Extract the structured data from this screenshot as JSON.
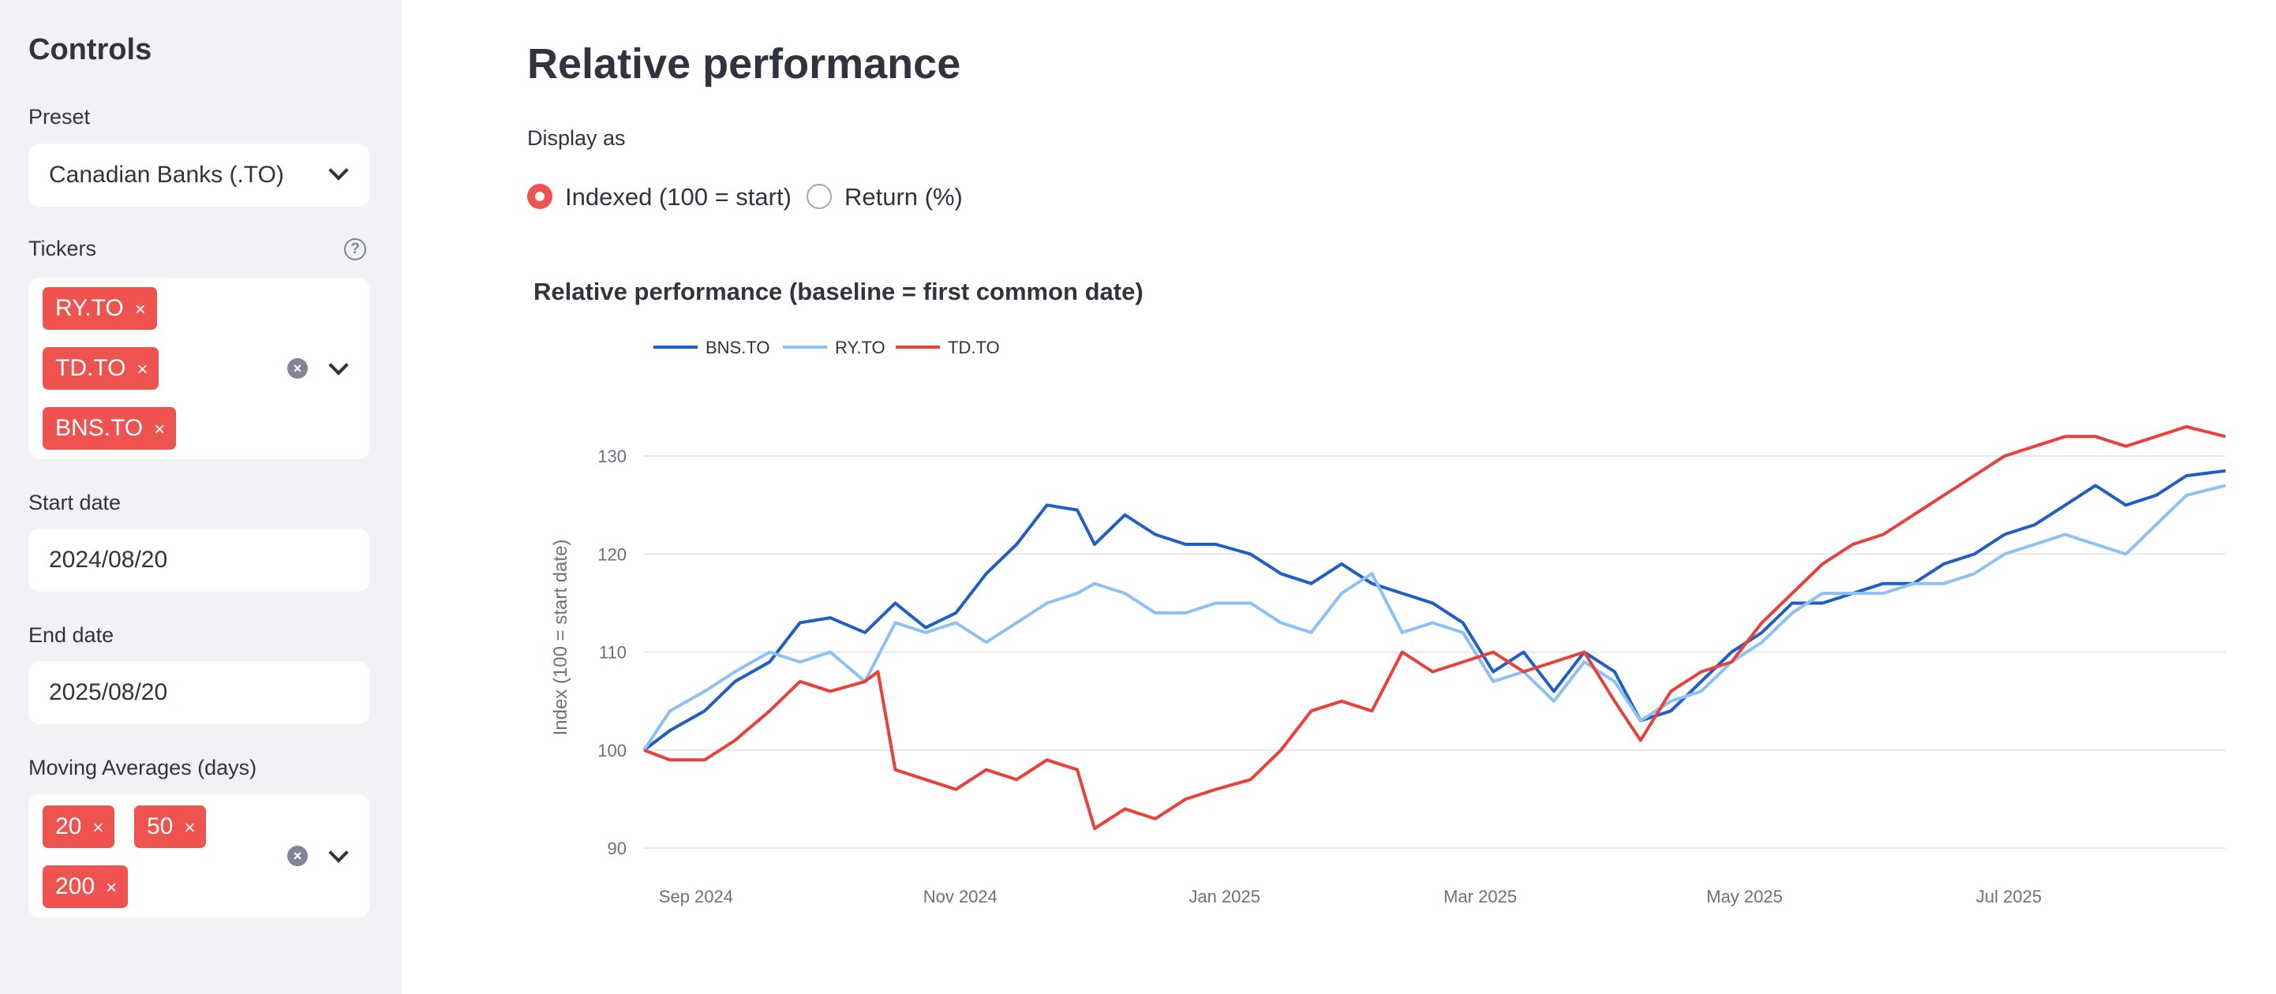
{
  "sidebar": {
    "title": "Controls",
    "preset": {
      "label": "Preset",
      "value": "Canadian Banks (.TO)"
    },
    "tickers": {
      "label": "Tickers",
      "chips": [
        "RY.TO",
        "TD.TO",
        "BNS.TO"
      ]
    },
    "start_date": {
      "label": "Start date",
      "value": "2024/08/20"
    },
    "end_date": {
      "label": "End date",
      "value": "2025/08/20"
    },
    "moving_averages": {
      "label": "Moving Averages (days)",
      "chips": [
        "20",
        "50",
        "200"
      ]
    },
    "help_glyph": "?",
    "remove_glyph": "×",
    "clear_glyph": "×"
  },
  "main": {
    "title": "Relative performance",
    "display_as": {
      "label": "Display as",
      "options": [
        "Indexed (100 = start)",
        "Return (%)"
      ],
      "selected": 0
    }
  },
  "colors": {
    "accent": "#ef5350",
    "sidebar_bg": "#f0f2f6"
  },
  "icons": [
    "help-icon",
    "close-icon",
    "clear-icon",
    "chevron-down-icon"
  ],
  "chart_data": {
    "type": "line",
    "title": "Relative performance (baseline = first common date)",
    "xlabel": "",
    "ylabel": "Index (100 = start date)",
    "ylim": [
      88,
      135
    ],
    "xlim": [
      "2024-08-20",
      "2025-08-20"
    ],
    "yticks": [
      90,
      100,
      110,
      120,
      130
    ],
    "xticks": [
      {
        "date": "2024-09-01",
        "label": "Sep 2024"
      },
      {
        "date": "2024-11-01",
        "label": "Nov 2024"
      },
      {
        "date": "2025-01-01",
        "label": "Jan 2025"
      },
      {
        "date": "2025-03-01",
        "label": "Mar 2025"
      },
      {
        "date": "2025-05-01",
        "label": "May 2025"
      },
      {
        "date": "2025-07-01",
        "label": "Jul 2025"
      }
    ],
    "grid": true,
    "legend": "top-left",
    "series": [
      {
        "name": "BNS.TO",
        "color": "#1f5ec4",
        "points": [
          [
            "2024-08-20",
            100
          ],
          [
            "2024-08-26",
            102
          ],
          [
            "2024-09-03",
            104
          ],
          [
            "2024-09-10",
            107
          ],
          [
            "2024-09-18",
            109
          ],
          [
            "2024-09-25",
            113
          ],
          [
            "2024-10-02",
            113.5
          ],
          [
            "2024-10-10",
            112
          ],
          [
            "2024-10-17",
            115
          ],
          [
            "2024-10-24",
            112.5
          ],
          [
            "2024-10-31",
            114
          ],
          [
            "2024-11-07",
            118
          ],
          [
            "2024-11-14",
            121
          ],
          [
            "2024-11-21",
            125
          ],
          [
            "2024-11-28",
            124.5
          ],
          [
            "2024-12-02",
            121
          ],
          [
            "2024-12-09",
            124
          ],
          [
            "2024-12-16",
            122
          ],
          [
            "2024-12-23",
            121
          ],
          [
            "2024-12-30",
            121
          ],
          [
            "2025-01-07",
            120
          ],
          [
            "2025-01-14",
            118
          ],
          [
            "2025-01-21",
            117
          ],
          [
            "2025-01-28",
            119
          ],
          [
            "2025-02-04",
            117
          ],
          [
            "2025-02-11",
            116
          ],
          [
            "2025-02-18",
            115
          ],
          [
            "2025-02-25",
            113
          ],
          [
            "2025-03-04",
            108
          ],
          [
            "2025-03-11",
            110
          ],
          [
            "2025-03-18",
            106
          ],
          [
            "2025-03-25",
            110
          ],
          [
            "2025-04-01",
            108
          ],
          [
            "2025-04-07",
            103
          ],
          [
            "2025-04-14",
            104
          ],
          [
            "2025-04-21",
            107
          ],
          [
            "2025-04-28",
            110
          ],
          [
            "2025-05-05",
            112
          ],
          [
            "2025-05-12",
            115
          ],
          [
            "2025-05-19",
            115
          ],
          [
            "2025-05-26",
            116
          ],
          [
            "2025-06-02",
            117
          ],
          [
            "2025-06-09",
            117
          ],
          [
            "2025-06-16",
            119
          ],
          [
            "2025-06-23",
            120
          ],
          [
            "2025-06-30",
            122
          ],
          [
            "2025-07-07",
            123
          ],
          [
            "2025-07-14",
            125
          ],
          [
            "2025-07-21",
            127
          ],
          [
            "2025-07-28",
            125
          ],
          [
            "2025-08-04",
            126
          ],
          [
            "2025-08-11",
            128
          ],
          [
            "2025-08-20",
            128.5
          ]
        ]
      },
      {
        "name": "RY.TO",
        "color": "#8ec1f3",
        "points": [
          [
            "2024-08-20",
            100
          ],
          [
            "2024-08-26",
            104
          ],
          [
            "2024-09-03",
            106
          ],
          [
            "2024-09-10",
            108
          ],
          [
            "2024-09-18",
            110
          ],
          [
            "2024-09-25",
            109
          ],
          [
            "2024-10-02",
            110
          ],
          [
            "2024-10-10",
            107
          ],
          [
            "2024-10-17",
            113
          ],
          [
            "2024-10-24",
            112
          ],
          [
            "2024-10-31",
            113
          ],
          [
            "2024-11-07",
            111
          ],
          [
            "2024-11-14",
            113
          ],
          [
            "2024-11-21",
            115
          ],
          [
            "2024-11-28",
            116
          ],
          [
            "2024-12-02",
            117
          ],
          [
            "2024-12-09",
            116
          ],
          [
            "2024-12-16",
            114
          ],
          [
            "2024-12-23",
            114
          ],
          [
            "2024-12-30",
            115
          ],
          [
            "2025-01-07",
            115
          ],
          [
            "2025-01-14",
            113
          ],
          [
            "2025-01-21",
            112
          ],
          [
            "2025-01-28",
            116
          ],
          [
            "2025-02-04",
            118
          ],
          [
            "2025-02-11",
            112
          ],
          [
            "2025-02-18",
            113
          ],
          [
            "2025-02-25",
            112
          ],
          [
            "2025-03-04",
            107
          ],
          [
            "2025-03-11",
            108
          ],
          [
            "2025-03-18",
            105
          ],
          [
            "2025-03-25",
            109
          ],
          [
            "2025-04-01",
            107
          ],
          [
            "2025-04-07",
            103
          ],
          [
            "2025-04-14",
            105
          ],
          [
            "2025-04-21",
            106
          ],
          [
            "2025-04-28",
            109
          ],
          [
            "2025-05-05",
            111
          ],
          [
            "2025-05-12",
            114
          ],
          [
            "2025-05-19",
            116
          ],
          [
            "2025-05-26",
            116
          ],
          [
            "2025-06-02",
            116
          ],
          [
            "2025-06-09",
            117
          ],
          [
            "2025-06-16",
            117
          ],
          [
            "2025-06-23",
            118
          ],
          [
            "2025-06-30",
            120
          ],
          [
            "2025-07-07",
            121
          ],
          [
            "2025-07-14",
            122
          ],
          [
            "2025-07-21",
            121
          ],
          [
            "2025-07-28",
            120
          ],
          [
            "2025-08-04",
            123
          ],
          [
            "2025-08-11",
            126
          ],
          [
            "2025-08-20",
            127
          ]
        ]
      },
      {
        "name": "TD.TO",
        "color": "#e8403a",
        "points": [
          [
            "2024-08-20",
            100
          ],
          [
            "2024-08-26",
            99
          ],
          [
            "2024-09-03",
            99
          ],
          [
            "2024-09-10",
            101
          ],
          [
            "2024-09-18",
            104
          ],
          [
            "2024-09-25",
            107
          ],
          [
            "2024-10-02",
            106
          ],
          [
            "2024-10-10",
            107
          ],
          [
            "2024-10-13",
            108
          ],
          [
            "2024-10-17",
            98
          ],
          [
            "2024-10-24",
            97
          ],
          [
            "2024-10-31",
            96
          ],
          [
            "2024-11-07",
            98
          ],
          [
            "2024-11-14",
            97
          ],
          [
            "2024-11-21",
            99
          ],
          [
            "2024-11-28",
            98
          ],
          [
            "2024-12-02",
            92
          ],
          [
            "2024-12-09",
            94
          ],
          [
            "2024-12-16",
            93
          ],
          [
            "2024-12-23",
            95
          ],
          [
            "2024-12-30",
            96
          ],
          [
            "2025-01-07",
            97
          ],
          [
            "2025-01-14",
            100
          ],
          [
            "2025-01-21",
            104
          ],
          [
            "2025-01-28",
            105
          ],
          [
            "2025-02-04",
            104
          ],
          [
            "2025-02-11",
            110
          ],
          [
            "2025-02-18",
            108
          ],
          [
            "2025-02-25",
            109
          ],
          [
            "2025-03-04",
            110
          ],
          [
            "2025-03-11",
            108
          ],
          [
            "2025-03-18",
            109
          ],
          [
            "2025-03-25",
            110
          ],
          [
            "2025-04-01",
            105
          ],
          [
            "2025-04-07",
            101
          ],
          [
            "2025-04-14",
            106
          ],
          [
            "2025-04-21",
            108
          ],
          [
            "2025-04-28",
            109
          ],
          [
            "2025-05-05",
            113
          ],
          [
            "2025-05-12",
            116
          ],
          [
            "2025-05-19",
            119
          ],
          [
            "2025-05-26",
            121
          ],
          [
            "2025-06-02",
            122
          ],
          [
            "2025-06-09",
            124
          ],
          [
            "2025-06-16",
            126
          ],
          [
            "2025-06-23",
            128
          ],
          [
            "2025-06-30",
            130
          ],
          [
            "2025-07-07",
            131
          ],
          [
            "2025-07-14",
            132
          ],
          [
            "2025-07-21",
            132
          ],
          [
            "2025-07-28",
            131
          ],
          [
            "2025-08-04",
            132
          ],
          [
            "2025-08-11",
            133
          ],
          [
            "2025-08-20",
            132
          ]
        ]
      }
    ]
  }
}
